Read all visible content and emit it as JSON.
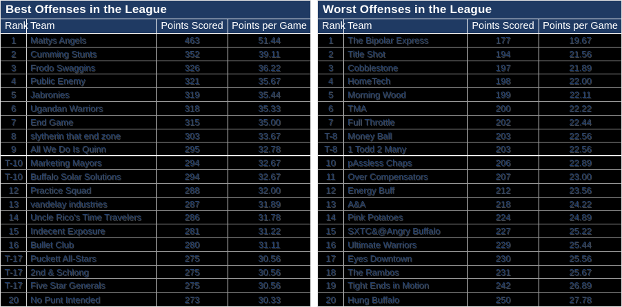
{
  "colors": {
    "header_navy": "#1f3a63",
    "row_text_navy": "#22406e",
    "background": "#000000",
    "grid_line": "#9a9a9a",
    "divider_white": "#ffffff"
  },
  "tables": [
    {
      "title": "Best Offenses in the League",
      "columns": [
        "Rank",
        "Team",
        "Points Scored",
        "Points per Game"
      ],
      "rows": [
        {
          "rank": "1",
          "team": "Mattys Angels",
          "points": "463",
          "ppg": "51.44"
        },
        {
          "rank": "2",
          "team": "Cumming Stunts",
          "points": "352",
          "ppg": "39.11"
        },
        {
          "rank": "3",
          "team": "Frodo Swaggins",
          "points": "326",
          "ppg": "36.22"
        },
        {
          "rank": "4",
          "team": "Public Enemy",
          "points": "321",
          "ppg": "35.67"
        },
        {
          "rank": "5",
          "team": "Jabronies",
          "points": "319",
          "ppg": "35.44"
        },
        {
          "rank": "6",
          "team": "Ugandan Warriors",
          "points": "318",
          "ppg": "35.33"
        },
        {
          "rank": "7",
          "team": "End Game",
          "points": "315",
          "ppg": "35.00"
        },
        {
          "rank": "8",
          "team": "slytherin that end zone",
          "points": "303",
          "ppg": "33.67"
        },
        {
          "rank": "9",
          "team": "All We Do Is Quinn",
          "points": "295",
          "ppg": "32.78"
        },
        {
          "rank": "T-10",
          "team": "Marketing Mayors",
          "points": "294",
          "ppg": "32.67"
        },
        {
          "rank": "T-10",
          "team": "Buffalo Solar Solutions",
          "points": "294",
          "ppg": "32.67"
        },
        {
          "rank": "12",
          "team": "Practice Squad",
          "points": "288",
          "ppg": "32.00"
        },
        {
          "rank": "13",
          "team": "vandelay industries",
          "points": "287",
          "ppg": "31.89"
        },
        {
          "rank": "14",
          "team": "Uncle Rico's Time Travelers",
          "points": "286",
          "ppg": "31.78"
        },
        {
          "rank": "15",
          "team": "Indecent Exposure",
          "points": "281",
          "ppg": "31.22"
        },
        {
          "rank": "16",
          "team": "Bullet Club",
          "points": "280",
          "ppg": "31.11"
        },
        {
          "rank": "T-17",
          "team": "Puckett All-Stars",
          "points": "275",
          "ppg": "30.56"
        },
        {
          "rank": "T-17",
          "team": "2nd & Schlong",
          "points": "275",
          "ppg": "30.56"
        },
        {
          "rank": "T-17",
          "team": "Five Star Generals",
          "points": "275",
          "ppg": "30.56"
        },
        {
          "rank": "20",
          "team": "No Punt Intended",
          "points": "273",
          "ppg": "30.33"
        }
      ]
    },
    {
      "title": "Worst Offenses in the League",
      "columns": [
        "Rank",
        "Team",
        "Points Scored",
        "Points per Game"
      ],
      "rows": [
        {
          "rank": "1",
          "team": "The Bipolar Express",
          "points": "177",
          "ppg": "19.67"
        },
        {
          "rank": "2",
          "team": "Title Shot",
          "points": "194",
          "ppg": "21.56"
        },
        {
          "rank": "3",
          "team": "Cobblestone",
          "points": "197",
          "ppg": "21.89"
        },
        {
          "rank": "4",
          "team": "HomeTech",
          "points": "198",
          "ppg": "22.00"
        },
        {
          "rank": "5",
          "team": "Morning Wood",
          "points": "199",
          "ppg": "22.11"
        },
        {
          "rank": "6",
          "team": "TMA",
          "points": "200",
          "ppg": "22.22"
        },
        {
          "rank": "7",
          "team": "Full Throttle",
          "points": "202",
          "ppg": "22.44"
        },
        {
          "rank": "T-8",
          "team": "Money Ball",
          "points": "203",
          "ppg": "22.56"
        },
        {
          "rank": "T-8",
          "team": "1 Todd 2 Many",
          "points": "203",
          "ppg": "22.56"
        },
        {
          "rank": "10",
          "team": "pAssless Chaps",
          "points": "206",
          "ppg": "22.89"
        },
        {
          "rank": "11",
          "team": "Over Compensators",
          "points": "207",
          "ppg": "23.00"
        },
        {
          "rank": "12",
          "team": "Energy Buff",
          "points": "212",
          "ppg": "23.56"
        },
        {
          "rank": "13",
          "team": "A&A",
          "points": "218",
          "ppg": "24.22"
        },
        {
          "rank": "14",
          "team": "Pink Potatoes",
          "points": "224",
          "ppg": "24.89"
        },
        {
          "rank": "15",
          "team": "SXTC&@Angry Buffalo",
          "points": "227",
          "ppg": "25.22"
        },
        {
          "rank": "16",
          "team": "Ultimate Warriors",
          "points": "229",
          "ppg": "25.44"
        },
        {
          "rank": "17",
          "team": "Eyes Downtown",
          "points": "230",
          "ppg": "25.56"
        },
        {
          "rank": "18",
          "team": "The Rambos",
          "points": "231",
          "ppg": "25.67"
        },
        {
          "rank": "19",
          "team": "Tight Ends in Motion",
          "points": "242",
          "ppg": "26.89"
        },
        {
          "rank": "20",
          "team": "Hung Buffalo",
          "points": "250",
          "ppg": "27.78"
        }
      ]
    }
  ]
}
